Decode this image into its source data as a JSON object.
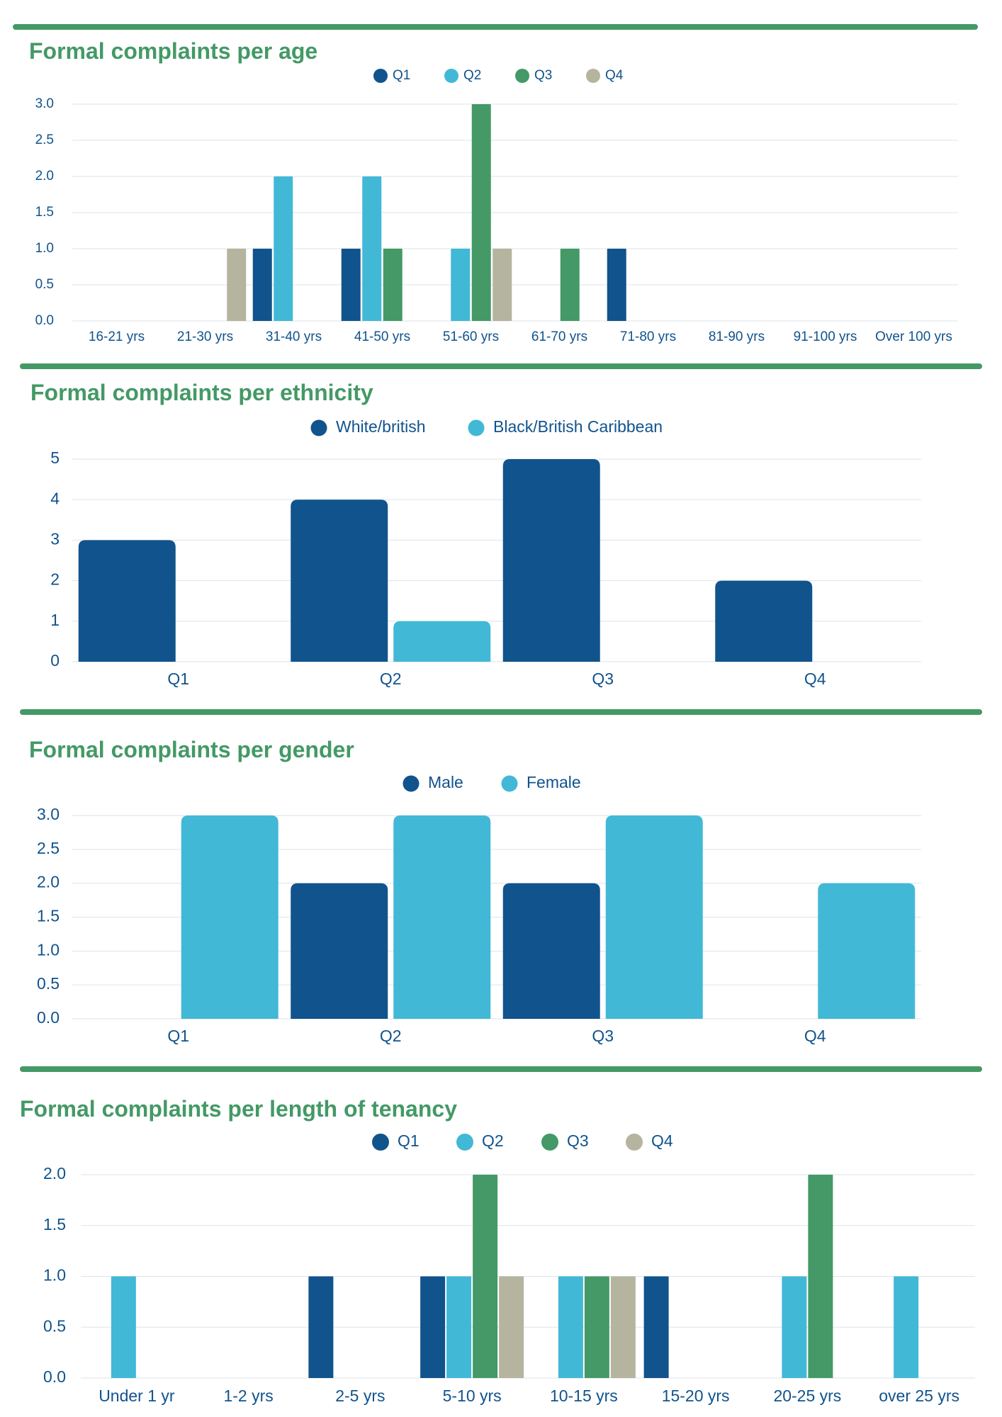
{
  "colors": {
    "title": "#449966",
    "divider": "#449966",
    "axis_text": "#11538c",
    "gridline": "#dde3ea",
    "q1": "#11538c",
    "q2": "#42b8d7",
    "q3": "#449966",
    "q4": "#b5b49f"
  },
  "chart_data": [
    {
      "type": "bar",
      "title": "Formal complaints per age",
      "categories": [
        "16-21 yrs",
        "21-30 yrs",
        "31-40 yrs",
        "41-50 yrs",
        "51-60 yrs",
        "61-70 yrs",
        "71-80 yrs",
        "81-90 yrs",
        "91-100 yrs",
        "Over 100 yrs"
      ],
      "series": [
        {
          "name": "Q1",
          "color": "#11538c",
          "values": [
            0,
            0,
            1,
            1,
            0,
            0,
            1,
            0,
            0,
            0
          ]
        },
        {
          "name": "Q2",
          "color": "#42b8d7",
          "values": [
            0,
            0,
            2,
            2,
            1,
            0,
            0,
            0,
            0,
            0
          ]
        },
        {
          "name": "Q3",
          "color": "#449966",
          "values": [
            0,
            0,
            0,
            1,
            3,
            1,
            0,
            0,
            0,
            0
          ]
        },
        {
          "name": "Q4",
          "color": "#b5b49f",
          "values": [
            0,
            1,
            0,
            0,
            1,
            0,
            0,
            0,
            0,
            0
          ]
        }
      ],
      "ylim": [
        0,
        3.0
      ],
      "yticks": [
        "0.0",
        "0.5",
        "1.0",
        "1.5",
        "2.0",
        "2.5",
        "3.0"
      ],
      "grid": true,
      "legend": "top-center"
    },
    {
      "type": "bar",
      "title": "Formal complaints per ethnicity",
      "categories": [
        "Q1",
        "Q2",
        "Q3",
        "Q4"
      ],
      "series": [
        {
          "name": "White/british",
          "color": "#11538c",
          "values": [
            3,
            4,
            5,
            2
          ]
        },
        {
          "name": "Black/British Caribbean",
          "color": "#42b8d7",
          "values": [
            0,
            1,
            0,
            0
          ]
        }
      ],
      "ylim": [
        0,
        5
      ],
      "yticks": [
        "0",
        "1",
        "2",
        "3",
        "4",
        "5"
      ],
      "grid": true,
      "legend": "top-center"
    },
    {
      "type": "bar",
      "title": "Formal complaints per gender",
      "categories": [
        "Q1",
        "Q2",
        "Q3",
        "Q4"
      ],
      "series": [
        {
          "name": "Male",
          "color": "#11538c",
          "values": [
            0,
            2,
            2,
            0
          ]
        },
        {
          "name": "Female",
          "color": "#42b8d7",
          "values": [
            3,
            3,
            3,
            2
          ]
        }
      ],
      "ylim": [
        0,
        3.0
      ],
      "yticks": [
        "0.0",
        "0.5",
        "1.0",
        "1.5",
        "2.0",
        "2.5",
        "3.0"
      ],
      "grid": true,
      "legend": "top-center"
    },
    {
      "type": "bar",
      "title": "Formal complaints per length of tenancy",
      "categories": [
        "Under 1 yr",
        "1-2 yrs",
        "2-5 yrs",
        "5-10 yrs",
        "10-15 yrs",
        "15-20 yrs",
        "20-25 yrs",
        "over 25 yrs"
      ],
      "series": [
        {
          "name": "Q1",
          "color": "#11538c",
          "values": [
            0,
            0,
            1,
            1,
            0,
            1,
            0,
            0
          ]
        },
        {
          "name": "Q2",
          "color": "#42b8d7",
          "values": [
            1,
            0,
            0,
            1,
            1,
            0,
            1,
            1
          ]
        },
        {
          "name": "Q3",
          "color": "#449966",
          "values": [
            0,
            0,
            0,
            2,
            1,
            0,
            2,
            0
          ]
        },
        {
          "name": "Q4",
          "color": "#b5b49f",
          "values": [
            0,
            0,
            0,
            1,
            1,
            0,
            0,
            0
          ]
        }
      ],
      "ylim": [
        0,
        2.0
      ],
      "yticks": [
        "0.0",
        "0.5",
        "1.0",
        "1.5",
        "2.0"
      ],
      "grid": true,
      "legend": "top-center"
    }
  ]
}
